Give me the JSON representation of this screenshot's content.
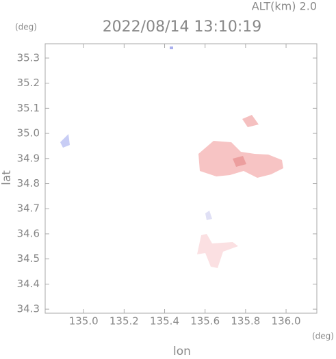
{
  "chart_data": {
    "type": "map",
    "title": "2022/08/14 13:10:19",
    "subtitle": "ALT(km) 2.0",
    "x_label": "lon",
    "y_label": "lat",
    "x_unit": "(deg)",
    "y_unit": "(deg)",
    "xlim": [
      134.81,
      136.152
    ],
    "ylim": [
      34.284,
      35.357
    ],
    "xticks": [
      {
        "value": 135.0,
        "label": "135.0"
      },
      135.2,
      135.4,
      135.6,
      135.8,
      {
        "value": 136.0,
        "label": "136.0"
      }
    ],
    "yticks": [
      34.3,
      34.4,
      34.5,
      34.6,
      34.7,
      34.8,
      34.9,
      {
        "value": 35.0,
        "label": "35.0"
      },
      35.1,
      35.2,
      35.3
    ],
    "grid": false
  }
}
